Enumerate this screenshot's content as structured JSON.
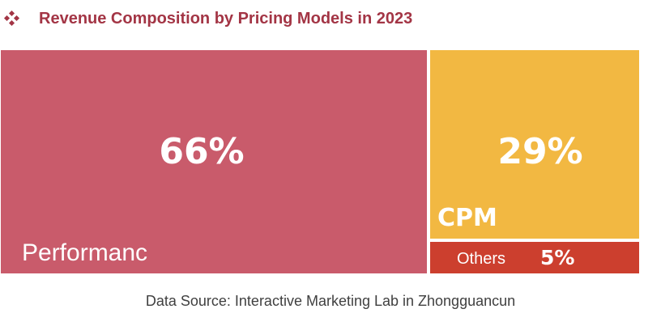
{
  "title": "Revenue Composition by Pricing Models in 2023",
  "bullet_icon": "diamond-bullet-icon",
  "source": "Data Source:  Interactive Marketing Lab in Zhongguancun",
  "chart_data": {
    "type": "treemap",
    "title": "Revenue Composition by Pricing Models in 2023",
    "unit": "%",
    "segments": [
      {
        "label": "Performanc",
        "value": 66,
        "value_label": "66%",
        "color": "#c95b6b"
      },
      {
        "label": "CPM",
        "value": 29,
        "value_label": "29%",
        "color": "#f2b842"
      },
      {
        "label": "Others",
        "value": 5,
        "value_label": "5%",
        "color": "#cc3f2e"
      }
    ]
  }
}
